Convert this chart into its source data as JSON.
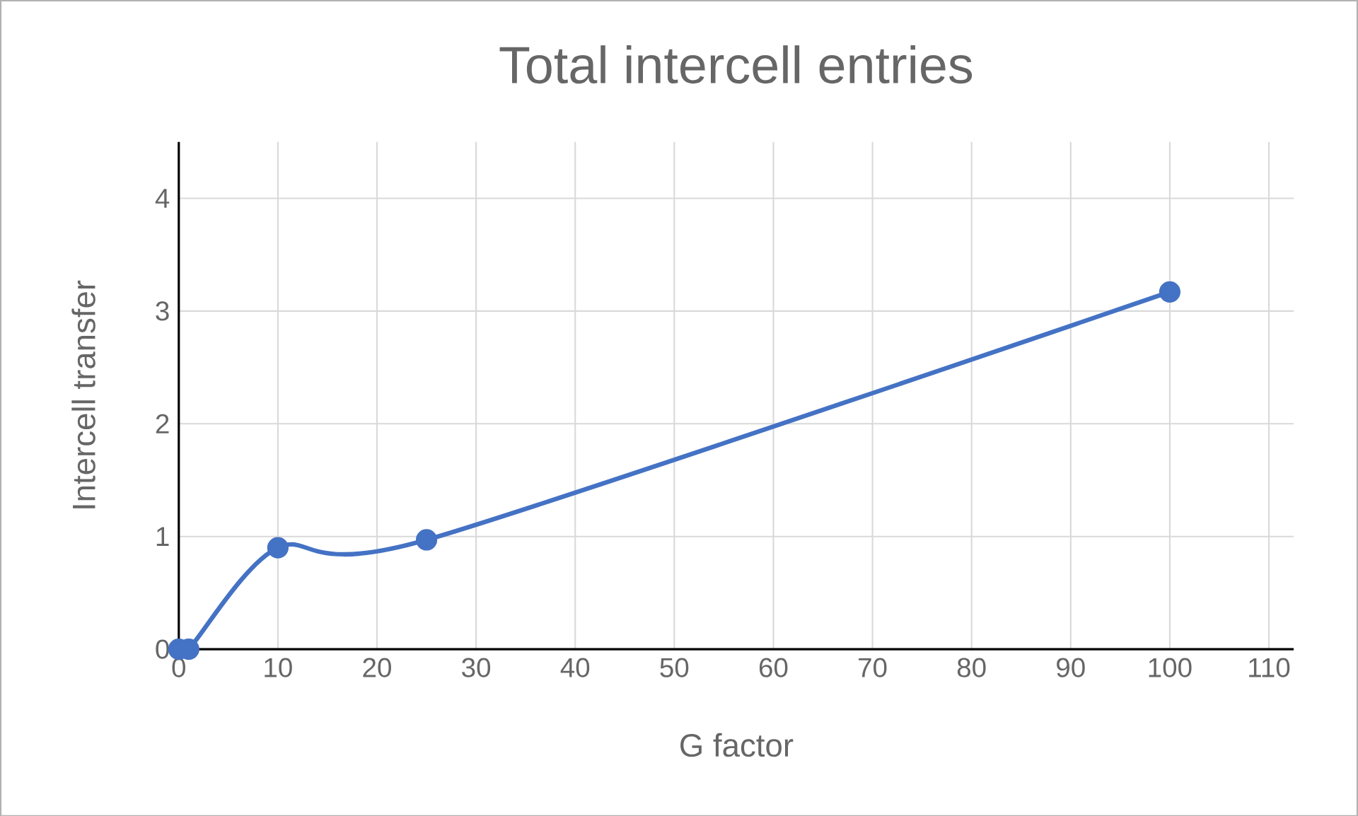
{
  "chart_data": {
    "type": "line",
    "title": "Total intercell entries",
    "xlabel": "G factor",
    "ylabel": "Intercell transfer",
    "series": [
      {
        "color": "#4472c4",
        "x": [
          0,
          1,
          10,
          25,
          100
        ],
        "values": [
          0,
          0,
          0.9,
          0.97,
          3.17
        ]
      }
    ],
    "xlim": [
      0,
      112.5
    ],
    "ylim": [
      0,
      4.5
    ],
    "xticks": [
      0,
      10,
      20,
      30,
      40,
      50,
      60,
      70,
      80,
      90,
      100,
      110
    ],
    "yticks": [
      0,
      1,
      2,
      3,
      4
    ],
    "grid": true,
    "marker": "circle",
    "line_style": "solid"
  }
}
